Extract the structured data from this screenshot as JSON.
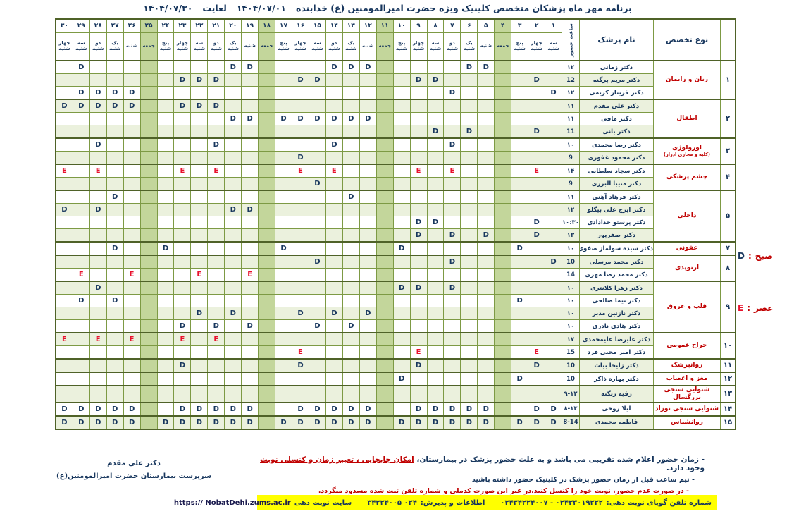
{
  "title": {
    "text": "برنامه مهر ماه پزشکان متخصص کلینیک ویژه حضرت امیرالمومنین (ع) خدابنده",
    "date_from": "۱۴۰۴/۰۷/۰۱",
    "until_label": "لغایت",
    "date_to": "۱۴۰۴/۰۷/۳۰"
  },
  "legend": {
    "morning": {
      "symbol": "D",
      "sep": ":",
      "label": "صبح"
    },
    "evening": {
      "symbol": "E",
      "sep": ":",
      "label": "عصر"
    }
  },
  "table": {
    "headers": {
      "row_no": "",
      "specialty": "نوع تخصص",
      "doctor": "نام پزشک",
      "hour": "ساعت حضور"
    },
    "days": [
      {
        "num": "۱",
        "weekday": "سه شنبه",
        "friday": false
      },
      {
        "num": "۲",
        "weekday": "چهار شنبه",
        "friday": false
      },
      {
        "num": "۳",
        "weekday": "پنج شنبه",
        "friday": false
      },
      {
        "num": "۴",
        "weekday": "جمعه",
        "friday": true
      },
      {
        "num": "۵",
        "weekday": "شنبه",
        "friday": false
      },
      {
        "num": "۶",
        "weekday": "یک شنبه",
        "friday": false
      },
      {
        "num": "۷",
        "weekday": "دو شنبه",
        "friday": false
      },
      {
        "num": "۸",
        "weekday": "سه شنبه",
        "friday": false
      },
      {
        "num": "۹",
        "weekday": "چهار شنبه",
        "friday": false
      },
      {
        "num": "۱۰",
        "weekday": "پنج شنبه",
        "friday": false
      },
      {
        "num": "۱۱",
        "weekday": "جمعه",
        "friday": true
      },
      {
        "num": "۱۲",
        "weekday": "شنبه",
        "friday": false
      },
      {
        "num": "۱۳",
        "weekday": "یک شنبه",
        "friday": false
      },
      {
        "num": "۱۴",
        "weekday": "دو شنبه",
        "friday": false
      },
      {
        "num": "۱۵",
        "weekday": "سه شنبه",
        "friday": false
      },
      {
        "num": "۱۶",
        "weekday": "چهار شنبه",
        "friday": false
      },
      {
        "num": "۱۷",
        "weekday": "پنج شنبه",
        "friday": false
      },
      {
        "num": "۱۸",
        "weekday": "جمعه",
        "friday": true
      },
      {
        "num": "۱۹",
        "weekday": "شنبه",
        "friday": false
      },
      {
        "num": "۲۰",
        "weekday": "یک شنبه",
        "friday": false
      },
      {
        "num": "۲۱",
        "weekday": "دو شنبه",
        "friday": false
      },
      {
        "num": "۲۲",
        "weekday": "سه شنبه",
        "friday": false
      },
      {
        "num": "۲۳",
        "weekday": "چهار شنبه",
        "friday": false
      },
      {
        "num": "۲۴",
        "weekday": "پنج شنبه",
        "friday": false
      },
      {
        "num": "۲۵",
        "weekday": "جمعه",
        "friday": true
      },
      {
        "num": "۲۶",
        "weekday": "شنبه",
        "friday": false
      },
      {
        "num": "۲۷",
        "weekday": "یک شنبه",
        "friday": false
      },
      {
        "num": "۲۸",
        "weekday": "دو شنبه",
        "friday": false
      },
      {
        "num": "۲۹",
        "weekday": "سه شنبه",
        "friday": false
      },
      {
        "num": "۳۰",
        "weekday": "چهار شنبه",
        "friday": false
      }
    ],
    "sections": [
      {
        "no": "۱",
        "specialty": "زنان و زایمان",
        "specialty_sub": "",
        "doctors": [
          {
            "name": "دکتر زمانی",
            "hour": "۱۲",
            "mark": "D",
            "days": [
              5,
              6,
              12,
              13,
              14,
              19,
              20,
              29
            ]
          },
          {
            "name": "دکتر  مریم پرگنه",
            "hour": "12",
            "mark": "D",
            "days": [
              2,
              8,
              9,
              15,
              16,
              21,
              22,
              23
            ]
          },
          {
            "name": "دکتر فریناز کریمی",
            "hour": "۱۲",
            "mark": "D",
            "days": [
              1,
              7,
              26,
              27,
              28,
              29
            ]
          }
        ]
      },
      {
        "no": "۲",
        "specialty": "اطفال",
        "specialty_sub": "",
        "doctors": [
          {
            "name": "دکتر علی  مقدم",
            "hour": "۱۱",
            "mark": "D",
            "days": [
              21,
              22,
              23,
              26,
              27,
              28,
              29,
              30
            ]
          },
          {
            "name": "دکتر مافی",
            "hour": "۱۱",
            "mark": "D",
            "days": [
              12,
              13,
              14,
              15,
              16,
              17,
              19,
              20
            ]
          },
          {
            "name": "دکتر بانی",
            "hour": "11",
            "mark": "D",
            "days": [
              2,
              6,
              8
            ]
          }
        ]
      },
      {
        "no": "۳",
        "specialty": "اورولوژی",
        "specialty_sub": "(کلیه و مجاری ادرار)",
        "doctors": [
          {
            "name": "دکتر رضا محمدی",
            "hour": "۱۰",
            "mark": "D",
            "days": [
              7,
              14,
              21,
              28
            ]
          },
          {
            "name": "دکتر محمود غفوری",
            "hour": "9",
            "mark": "D",
            "days": [
              16
            ]
          }
        ]
      },
      {
        "no": "۴",
        "specialty": "چشم پزشکی",
        "specialty_sub": "",
        "doctors": [
          {
            "name": "دکتر سجاد سلطانی",
            "hour": "۱۴",
            "mark": "E",
            "days": [
              2,
              7,
              9,
              14,
              16,
              21,
              23,
              28,
              30
            ]
          },
          {
            "name": "دکتر منیبا البرزی",
            "hour": "9",
            "mark": "D",
            "days": [
              15
            ]
          }
        ]
      },
      {
        "no": "۵",
        "specialty": "داخلی",
        "specialty_sub": "",
        "doctors": [
          {
            "name": "دکتر فرهاد آهنی",
            "hour": "۱۱",
            "mark": "D",
            "days": [
              13,
              27
            ]
          },
          {
            "name": "دکتر ایرج علی بیگلو",
            "hour": "۱۲",
            "mark": "D",
            "days": [
              19,
              20,
              28,
              30
            ]
          },
          {
            "name": "دکتر پرستو خدادادی",
            "hour": "۱۰:۳۰",
            "mark": "D",
            "days": [
              2,
              8,
              9
            ]
          },
          {
            "name": "دکتر صفرپور",
            "hour": "۱۳",
            "mark": "D",
            "days": [
              2,
              5,
              7,
              9
            ]
          }
        ]
      },
      {
        "no": "۷",
        "specialty": "عفونی",
        "specialty_sub": "",
        "doctors": [
          {
            "name": "دکتر سیده سولماز صفوی",
            "hour": "۱۰",
            "mark": "D",
            "days": [
              3,
              10,
              17,
              24,
              27
            ]
          }
        ]
      },
      {
        "no": "۸",
        "specialty": "ارتوپدی",
        "specialty_sub": "",
        "doctors": [
          {
            "name": "دکتر محمد  مرسلی",
            "hour": "10",
            "mark": "D",
            "days": [
              1,
              7,
              15
            ]
          },
          {
            "name": "دکتر محمد رضا مهری",
            "hour": "14",
            "mark": "E",
            "days": [
              19,
              22,
              26,
              29
            ]
          }
        ]
      },
      {
        "no": "۹",
        "specialty": "قلب و عروق",
        "specialty_sub": "",
        "doctors": [
          {
            "name": "دکتر زهرا کلانتری",
            "hour": "۱۰",
            "mark": "D",
            "days": [
              7,
              9,
              10,
              28
            ]
          },
          {
            "name": "دکتر نیما صالحی",
            "hour": "۱۰",
            "mark": "D",
            "days": [
              3,
              27,
              29
            ]
          },
          {
            "name": "دکتر نازنین مدبر",
            "hour": "۱۰",
            "mark": "D",
            "days": [
              12,
              14,
              16,
              20,
              22
            ]
          },
          {
            "name": "دکتر هادی نادری",
            "hour": "۱۰",
            "mark": "D",
            "days": [
              13,
              15,
              19,
              21,
              23
            ]
          }
        ]
      },
      {
        "no": "۱۰",
        "specialty": "جراح عمومی",
        "specialty_sub": "",
        "doctors": [
          {
            "name": "دکتر علیرضا علیمحمدی",
            "hour": "۱۷",
            "mark": "E",
            "days": [
              21,
              23,
              26,
              28,
              30
            ]
          },
          {
            "name": "دکتر امیر محبی فرد",
            "hour": "15",
            "mark": "E",
            "days": [
              2,
              9,
              16
            ]
          }
        ]
      },
      {
        "no": "۱۱",
        "specialty": "روانپزشک",
        "specialty_sub": "",
        "doctors": [
          {
            "name": "دکتر زلیخا بیات",
            "hour": "10",
            "mark": "D",
            "days": [
              2,
              9,
              16,
              23
            ]
          }
        ]
      },
      {
        "no": "۱۲",
        "specialty": "مغز و اعصاب",
        "specialty_sub": "",
        "doctors": [
          {
            "name": "دکتر بهاره ذاکر",
            "hour": "10",
            "mark": "D",
            "days": [
              3,
              10
            ]
          }
        ]
      },
      {
        "no": "۱۳",
        "specialty": "شنوایی سنجی  بزرگسال",
        "specialty_sub": "",
        "doctors": [
          {
            "name": "رقیه زنگنه",
            "hour": "۹-۱۲",
            "mark": "D",
            "days": []
          }
        ]
      },
      {
        "no": "۱۴",
        "specialty": "شنوایی سنجی  نوزاد",
        "specialty_sub": "",
        "doctors": [
          {
            "name": "لیلا روحی",
            "hour": "۸-۱۳",
            "mark": "D",
            "days": [
              1,
              2,
              5,
              6,
              7,
              8,
              9,
              12,
              13,
              14,
              15,
              16,
              19,
              20,
              21,
              22,
              23,
              26,
              27,
              28,
              29,
              30
            ]
          }
        ]
      },
      {
        "no": "۱۵",
        "specialty": "روانشناس",
        "specialty_sub": "",
        "doctors": [
          {
            "name": "فاطمه محمدی",
            "hour": "8-14",
            "mark": "D",
            "days": [
              1,
              2,
              3,
              5,
              6,
              7,
              8,
              9,
              10,
              12,
              13,
              14,
              15,
              16,
              17,
              19,
              20,
              21,
              22,
              23,
              24,
              26,
              27,
              28,
              29,
              30
            ]
          }
        ]
      }
    ]
  },
  "notes": {
    "line1_prefix": "-  زمان حضور اعلام شده تقریبی می باشد و به علت حضور پزشک در بیمارستان، ",
    "line1_highlight": "امکان جابجایی ، تغییر زمان و کنسلی نوبت",
    "line1_suffix": " وجود دارد.",
    "line2": "- نیم ساعت قبل از زمان حضور پزشک در کلینیک حضور داشته باشید",
    "line3": "- در صورت عدم حضور، نوبت خود را کنسل کنید.در غیر این صورت کدملی و شماره تلفن ثبت شده مسدود میگردد."
  },
  "signature": {
    "line1": "دکتر علی مقدم",
    "line2": "سرپرست بیمارستان حضرت امیرالمومنین(ع)"
  },
  "contact_bar": {
    "phone_label": "شماره تلفن گویای نوبت دهی:",
    "phone_value": "۰۲۴۳۳۰۱۹۲۲۲ - ۰۲۴۳۴۲۲۴۰۰۷",
    "info_label": "اطلاعات و پذیرش:",
    "info_value": "۰۲۴ ۳۴۲۲۴۰۰۵",
    "site_label": "سایت نوبت دهی",
    "site_url": "https:// NobatDehi.zums.ac.ir"
  },
  "colors": {
    "navy": "#17365d",
    "red": "#c00000",
    "bright_red": "#e8112d",
    "grid_olive": "#7d9a44",
    "section_border": "#4f6228",
    "stripe_green": "#ebf1dd",
    "friday_green": "#c3d69b",
    "bar_yellow": "#ffff00"
  }
}
